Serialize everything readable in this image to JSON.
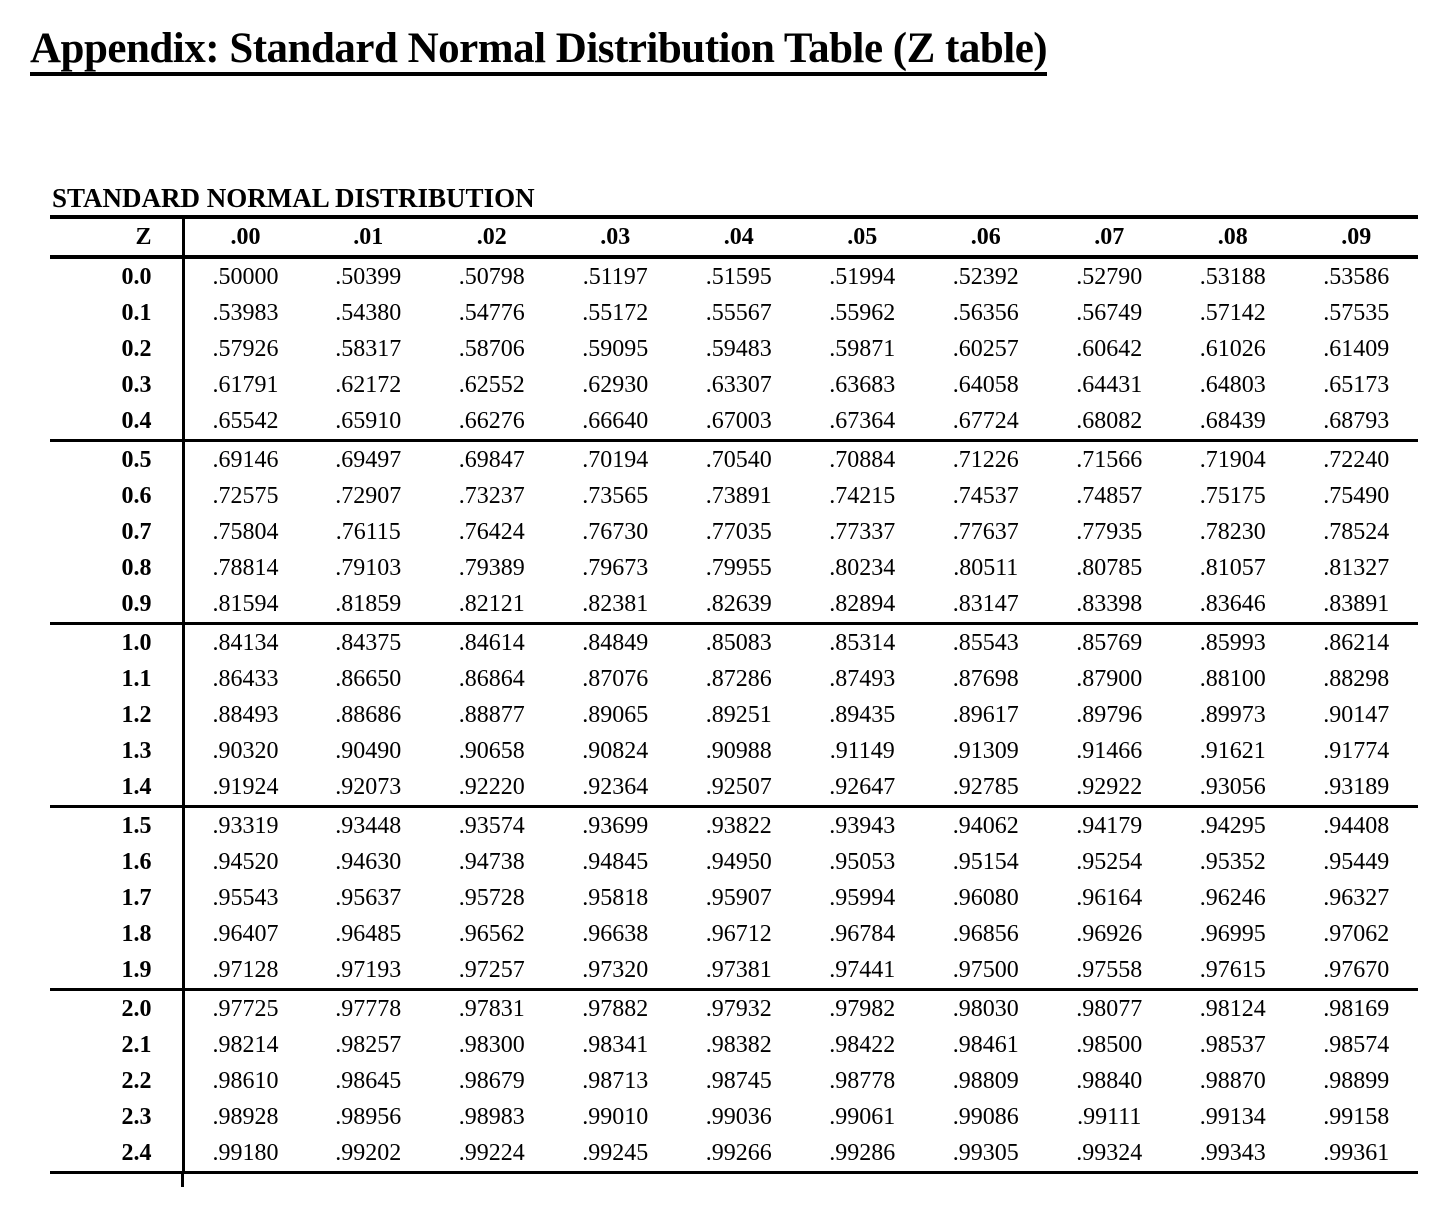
{
  "page": {
    "title": "Appendix: Standard Normal Distribution Table (Z table)"
  },
  "ztable": {
    "heading": "STANDARD NORMAL DISTRIBUTION",
    "corner_label": "Z",
    "column_headers": [
      ".00",
      ".01",
      ".02",
      ".03",
      ".04",
      ".05",
      ".06",
      ".07",
      ".08",
      ".09"
    ],
    "group_size": 5,
    "rows": [
      {
        "z": "0.0",
        "values": [
          ".50000",
          ".50399",
          ".50798",
          ".51197",
          ".51595",
          ".51994",
          ".52392",
          ".52790",
          ".53188",
          ".53586"
        ]
      },
      {
        "z": "0.1",
        "values": [
          ".53983",
          ".54380",
          ".54776",
          ".55172",
          ".55567",
          ".55962",
          ".56356",
          ".56749",
          ".57142",
          ".57535"
        ]
      },
      {
        "z": "0.2",
        "values": [
          ".57926",
          ".58317",
          ".58706",
          ".59095",
          ".59483",
          ".59871",
          ".60257",
          ".60642",
          ".61026",
          ".61409"
        ]
      },
      {
        "z": "0.3",
        "values": [
          ".61791",
          ".62172",
          ".62552",
          ".62930",
          ".63307",
          ".63683",
          ".64058",
          ".64431",
          ".64803",
          ".65173"
        ]
      },
      {
        "z": "0.4",
        "values": [
          ".65542",
          ".65910",
          ".66276",
          ".66640",
          ".67003",
          ".67364",
          ".67724",
          ".68082",
          ".68439",
          ".68793"
        ]
      },
      {
        "z": "0.5",
        "values": [
          ".69146",
          ".69497",
          ".69847",
          ".70194",
          ".70540",
          ".70884",
          ".71226",
          ".71566",
          ".71904",
          ".72240"
        ]
      },
      {
        "z": "0.6",
        "values": [
          ".72575",
          ".72907",
          ".73237",
          ".73565",
          ".73891",
          ".74215",
          ".74537",
          ".74857",
          ".75175",
          ".75490"
        ]
      },
      {
        "z": "0.7",
        "values": [
          ".75804",
          ".76115",
          ".76424",
          ".76730",
          ".77035",
          ".77337",
          ".77637",
          ".77935",
          ".78230",
          ".78524"
        ]
      },
      {
        "z": "0.8",
        "values": [
          ".78814",
          ".79103",
          ".79389",
          ".79673",
          ".79955",
          ".80234",
          ".80511",
          ".80785",
          ".81057",
          ".81327"
        ]
      },
      {
        "z": "0.9",
        "values": [
          ".81594",
          ".81859",
          ".82121",
          ".82381",
          ".82639",
          ".82894",
          ".83147",
          ".83398",
          ".83646",
          ".83891"
        ]
      },
      {
        "z": "1.0",
        "values": [
          ".84134",
          ".84375",
          ".84614",
          ".84849",
          ".85083",
          ".85314",
          ".85543",
          ".85769",
          ".85993",
          ".86214"
        ]
      },
      {
        "z": "1.1",
        "values": [
          ".86433",
          ".86650",
          ".86864",
          ".87076",
          ".87286",
          ".87493",
          ".87698",
          ".87900",
          ".88100",
          ".88298"
        ]
      },
      {
        "z": "1.2",
        "values": [
          ".88493",
          ".88686",
          ".88877",
          ".89065",
          ".89251",
          ".89435",
          ".89617",
          ".89796",
          ".89973",
          ".90147"
        ]
      },
      {
        "z": "1.3",
        "values": [
          ".90320",
          ".90490",
          ".90658",
          ".90824",
          ".90988",
          ".91149",
          ".91309",
          ".91466",
          ".91621",
          ".91774"
        ]
      },
      {
        "z": "1.4",
        "values": [
          ".91924",
          ".92073",
          ".92220",
          ".92364",
          ".92507",
          ".92647",
          ".92785",
          ".92922",
          ".93056",
          ".93189"
        ]
      },
      {
        "z": "1.5",
        "values": [
          ".93319",
          ".93448",
          ".93574",
          ".93699",
          ".93822",
          ".93943",
          ".94062",
          ".94179",
          ".94295",
          ".94408"
        ]
      },
      {
        "z": "1.6",
        "values": [
          ".94520",
          ".94630",
          ".94738",
          ".94845",
          ".94950",
          ".95053",
          ".95154",
          ".95254",
          ".95352",
          ".95449"
        ]
      },
      {
        "z": "1.7",
        "values": [
          ".95543",
          ".95637",
          ".95728",
          ".95818",
          ".95907",
          ".95994",
          ".96080",
          ".96164",
          ".96246",
          ".96327"
        ]
      },
      {
        "z": "1.8",
        "values": [
          ".96407",
          ".96485",
          ".96562",
          ".96638",
          ".96712",
          ".96784",
          ".96856",
          ".96926",
          ".96995",
          ".97062"
        ]
      },
      {
        "z": "1.9",
        "values": [
          ".97128",
          ".97193",
          ".97257",
          ".97320",
          ".97381",
          ".97441",
          ".97500",
          ".97558",
          ".97615",
          ".97670"
        ]
      },
      {
        "z": "2.0",
        "values": [
          ".97725",
          ".97778",
          ".97831",
          ".97882",
          ".97932",
          ".97982",
          ".98030",
          ".98077",
          ".98124",
          ".98169"
        ]
      },
      {
        "z": "2.1",
        "values": [
          ".98214",
          ".98257",
          ".98300",
          ".98341",
          ".98382",
          ".98422",
          ".98461",
          ".98500",
          ".98537",
          ".98574"
        ]
      },
      {
        "z": "2.2",
        "values": [
          ".98610",
          ".98645",
          ".98679",
          ".98713",
          ".98745",
          ".98778",
          ".98809",
          ".98840",
          ".98870",
          ".98899"
        ]
      },
      {
        "z": "2.3",
        "values": [
          ".98928",
          ".98956",
          ".98983",
          ".99010",
          ".99036",
          ".99061",
          ".99086",
          ".99111",
          ".99134",
          ".99158"
        ]
      },
      {
        "z": "2.4",
        "values": [
          ".99180",
          ".99202",
          ".99224",
          ".99245",
          ".99266",
          ".99286",
          ".99305",
          ".99324",
          ".99343",
          ".99361"
        ]
      }
    ]
  }
}
